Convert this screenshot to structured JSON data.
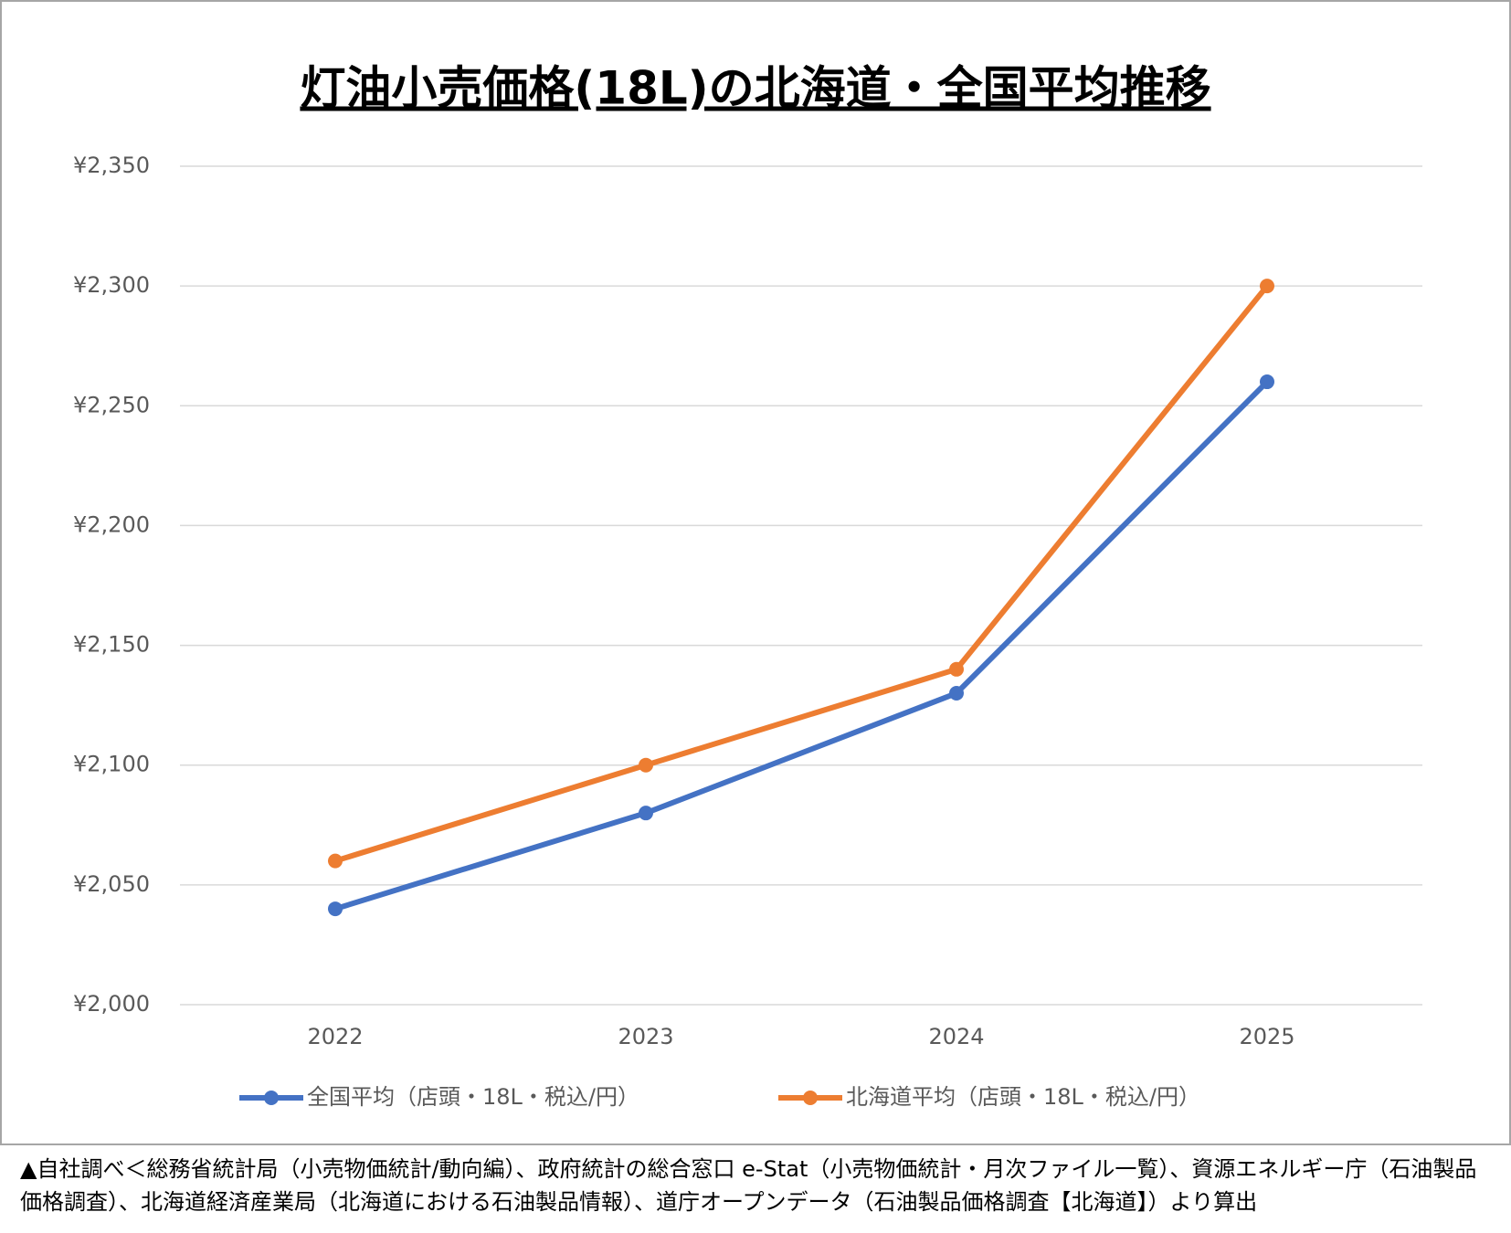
{
  "chart_data": {
    "type": "line",
    "title": "灯油小売価格(18L)の北海道・全国平均推移",
    "categories": [
      "2022",
      "2023",
      "2024",
      "2025"
    ],
    "series": [
      {
        "name": "全国平均（店頭・18L・税込/円）",
        "color": "#4472c4",
        "values": [
          2040,
          2080,
          2130,
          2260
        ]
      },
      {
        "name": "北海道平均（店頭・18L・税込/円）",
        "color": "#ed7d31",
        "values": [
          2060,
          2100,
          2140,
          2300
        ]
      }
    ],
    "ylim": [
      2000,
      2350
    ],
    "yticks": [
      {
        "value": 2000,
        "label": "¥2,000"
      },
      {
        "value": 2050,
        "label": "¥2,050"
      },
      {
        "value": 2100,
        "label": "¥2,100"
      },
      {
        "value": 2150,
        "label": "¥2,150"
      },
      {
        "value": 2200,
        "label": "¥2,200"
      },
      {
        "value": 2250,
        "label": "¥2,250"
      },
      {
        "value": 2300,
        "label": "¥2,300"
      },
      {
        "value": 2350,
        "label": "¥2,350"
      }
    ],
    "grid": true,
    "legend": "bottom",
    "note": "▲自社調べ＜総務省統計局（小売物価統計/動向編）、政府統計の総合窓口 e-Stat（小売物価統計・月次ファイル一覧）、資源エネルギー庁（石油製品価格調査）、北海道経済産業局（北海道における石油製品情報）、道庁オープンデータ（石油製品価格調査【北海道】）より算出"
  }
}
